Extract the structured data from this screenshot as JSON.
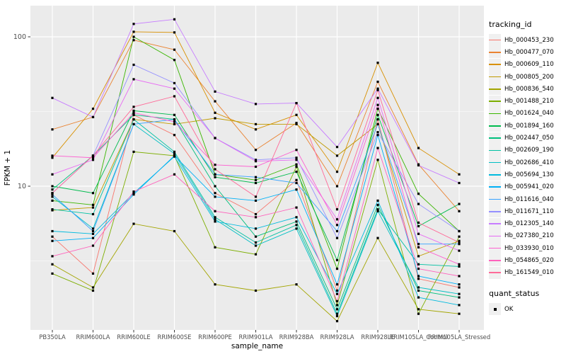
{
  "chart_data": {
    "type": "line",
    "title": "",
    "xlabel": "sample_name",
    "ylabel": "FPKM + 1",
    "yscale": "log10",
    "ylim": [
      1.1,
      158
    ],
    "y_ticks": [
      "100",
      "10"
    ],
    "grid": "on",
    "legend_position": "right",
    "legend_title": "tracking_id",
    "quant_legend": {
      "title": "quant_status",
      "items": [
        "OK"
      ]
    },
    "marker": "black-square",
    "panel_color": "#EBEBEB",
    "gridline_color": "#FFFFFF",
    "tick_label_color": "#4D4D4D",
    "categories": [
      "PB350LA",
      "RRIM600LA",
      "RRIM600LE",
      "RRIM600SE",
      "RRIM600PE",
      "RRIM901LA",
      "RRIM928BA",
      "RRIM928LA",
      "RRIM928LE",
      "RRIM105LA_Control",
      "RRIM105LA_Stressed"
    ],
    "series": [
      {
        "name": "Hb_000453_230",
        "color": "#F8766D",
        "values": [
          4.6,
          2.6,
          30,
          22,
          9.0,
          6.5,
          11,
          2.0,
          28,
          2.4,
          2.1
        ]
      },
      {
        "name": "Hb_000477_070",
        "color": "#EA8331",
        "values": [
          24,
          29,
          95,
          82,
          37,
          17.5,
          26.5,
          10,
          50,
          14,
          6.8
        ]
      },
      {
        "name": "Hb_000609_110",
        "color": "#D89000",
        "values": [
          15.5,
          33,
          108,
          107,
          31,
          24,
          30,
          12.5,
          67,
          18,
          12
        ]
      },
      {
        "name": "Hb_000805_200",
        "color": "#C09B00",
        "values": [
          6.9,
          7.2,
          28,
          26,
          28.5,
          26,
          26,
          16,
          26,
          3.4,
          4.3
        ]
      },
      {
        "name": "Hb_000836_540",
        "color": "#A3A500",
        "values": [
          3.0,
          2.1,
          5.6,
          5.0,
          2.2,
          2.0,
          2.2,
          1.25,
          4.5,
          1.5,
          1.4
        ]
      },
      {
        "name": "Hb_001488_210",
        "color": "#7CAE00",
        "values": [
          2.6,
          2.0,
          17,
          16,
          3.9,
          3.5,
          13.5,
          1.6,
          15,
          1.4,
          4.6
        ]
      },
      {
        "name": "Hb_001624_040",
        "color": "#39B600",
        "values": [
          8.0,
          7.5,
          100,
          70,
          12,
          11,
          14,
          2.8,
          33,
          8.9,
          5.0
        ]
      },
      {
        "name": "Hb_001894_160",
        "color": "#00BB4E",
        "values": [
          10,
          9.0,
          32,
          30,
          11.5,
          10.5,
          12.5,
          3.2,
          30,
          5.4,
          7.6
        ]
      },
      {
        "name": "Hb_002447_050",
        "color": "#00BF7D",
        "values": [
          9.5,
          16,
          30,
          28,
          10,
          4.6,
          5.8,
          1.5,
          7.5,
          2.0,
          1.8
        ]
      },
      {
        "name": "Hb_002609_190",
        "color": "#00C1A3",
        "values": [
          7.0,
          6.5,
          28,
          17,
          6.2,
          4.2,
          5.5,
          1.4,
          7.0,
          3.0,
          2.9
        ]
      },
      {
        "name": "Hb_002686_410",
        "color": "#00BFC4",
        "values": [
          8.5,
          5.2,
          26,
          16.5,
          6.0,
          4.0,
          5.2,
          1.35,
          6.8,
          2.1,
          1.9
        ]
      },
      {
        "name": "Hb_005694_130",
        "color": "#00BADE",
        "values": [
          5.0,
          4.8,
          9.0,
          15.8,
          5.8,
          5.2,
          6.2,
          1.9,
          8.0,
          1.8,
          1.6
        ]
      },
      {
        "name": "Hb_005941_020",
        "color": "#00B0F6",
        "values": [
          4.3,
          4.5,
          8.8,
          16,
          8.5,
          8.0,
          9.5,
          2.2,
          22,
          2.5,
          2.2
        ]
      },
      {
        "name": "Hb_011616_040",
        "color": "#35A2FF",
        "values": [
          8.8,
          5.0,
          26,
          28,
          12,
          11.5,
          10.5,
          5.0,
          26,
          4.1,
          4.1
        ]
      },
      {
        "name": "Hb_011671_110",
        "color": "#9590FF",
        "values": [
          9.0,
          16,
          65,
          49,
          21,
          15,
          15.5,
          4.5,
          23,
          7.6,
          5.0
        ]
      },
      {
        "name": "Hb_012305_140",
        "color": "#C77CFF",
        "values": [
          39,
          29,
          122,
          131,
          43,
          35.5,
          36,
          18.3,
          45,
          13.8,
          10.5
        ]
      },
      {
        "name": "Hb_027380_210",
        "color": "#E76BF3",
        "values": [
          12,
          15,
          52,
          45,
          21,
          14.7,
          15,
          6.0,
          39,
          4.8,
          3.7
        ]
      },
      {
        "name": "Hb_033930_010",
        "color": "#FD61D1",
        "values": [
          16,
          15.5,
          31,
          27,
          13.9,
          13.5,
          17.5,
          5.5,
          35,
          3.9,
          3.0
        ]
      },
      {
        "name": "Hb_054865_020",
        "color": "#FF62BC",
        "values": [
          3.4,
          4.0,
          9.2,
          12,
          6.8,
          6.2,
          7.2,
          1.7,
          18,
          2.8,
          2.5
        ]
      },
      {
        "name": "Hb_161549_010",
        "color": "#FF6A98",
        "values": [
          9.0,
          16,
          34,
          40,
          13,
          8.5,
          36,
          7.0,
          44,
          5.7,
          4.2
        ]
      }
    ]
  }
}
